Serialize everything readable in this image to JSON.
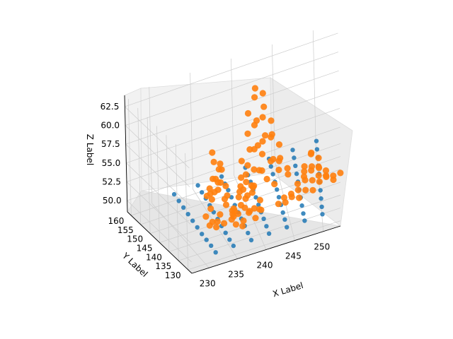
{
  "chart_data": {
    "type": "scatter",
    "projection": "3d",
    "xlabel": "X Label",
    "ylabel": "Y Label",
    "zlabel": "Z Label",
    "xlim": [
      227,
      253
    ],
    "ylim": [
      128,
      162
    ],
    "zlim": [
      48.5,
      64
    ],
    "xticks": [
      "230",
      "235",
      "240",
      "245",
      "250"
    ],
    "yticks": [
      "130",
      "135",
      "140",
      "145",
      "150",
      "155",
      "160"
    ],
    "zticks": [
      "50.0",
      "52.5",
      "55.0",
      "57.5",
      "60.0",
      "62.5"
    ],
    "grid": true,
    "colors": {
      "series_1": "#1f77b4",
      "series_2": "#ff7f0e",
      "pane": "#f2f2f2",
      "grid": "#cccccc"
    },
    "series": [
      {
        "color": "#1f77b4",
        "marker_size": 5,
        "points": [
          [
            232,
            131,
            49.3
          ],
          [
            232,
            134,
            49.4
          ],
          [
            232,
            137,
            49.4
          ],
          [
            232,
            140,
            49.4
          ],
          [
            232,
            143,
            49.5
          ],
          [
            232,
            146,
            49.6
          ],
          [
            232,
            149,
            49.7
          ],
          [
            232,
            152,
            49.8
          ],
          [
            232,
            155,
            49.9
          ],
          [
            232,
            158,
            50.0
          ],
          [
            235,
            131,
            49.4
          ],
          [
            235,
            134,
            49.4
          ],
          [
            235,
            137,
            49.5
          ],
          [
            235,
            140,
            49.6
          ],
          [
            235,
            143,
            49.7
          ],
          [
            235,
            146,
            49.8
          ],
          [
            235,
            149,
            49.9
          ],
          [
            235,
            152,
            50.0
          ],
          [
            235,
            155,
            50.0
          ],
          [
            235,
            158,
            50.1
          ],
          [
            238,
            131,
            49.4
          ],
          [
            238,
            134,
            49.5
          ],
          [
            238,
            137,
            49.6
          ],
          [
            238,
            140,
            49.7
          ],
          [
            238,
            143,
            49.7
          ],
          [
            238,
            146,
            49.8
          ],
          [
            238,
            149,
            50.0
          ],
          [
            238,
            152,
            50.1
          ],
          [
            238,
            155,
            50.1
          ],
          [
            238,
            158,
            50.2
          ],
          [
            241,
            131,
            49.5
          ],
          [
            241,
            134,
            49.6
          ],
          [
            241,
            137,
            49.7
          ],
          [
            241,
            140,
            49.7
          ],
          [
            241,
            143,
            49.8
          ],
          [
            241,
            146,
            49.9
          ],
          [
            241,
            149,
            50.0
          ],
          [
            241,
            152,
            50.2
          ],
          [
            241,
            155,
            50.2
          ],
          [
            241,
            158,
            50.3
          ],
          [
            244,
            131,
            49.6
          ],
          [
            244,
            134,
            49.7
          ],
          [
            244,
            137,
            49.7
          ],
          [
            244,
            140,
            49.8
          ],
          [
            244,
            143,
            49.9
          ],
          [
            244,
            146,
            50.0
          ],
          [
            244,
            149,
            50.1
          ],
          [
            244,
            152,
            50.2
          ],
          [
            244,
            155,
            50.3
          ],
          [
            244,
            158,
            50.4
          ],
          [
            247,
            131,
            49.7
          ],
          [
            247,
            134,
            49.7
          ],
          [
            247,
            137,
            49.8
          ],
          [
            247,
            140,
            49.9
          ],
          [
            247,
            143,
            50.0
          ],
          [
            247,
            146,
            50.1
          ],
          [
            247,
            149,
            50.2
          ],
          [
            247,
            152,
            50.3
          ],
          [
            247,
            155,
            50.4
          ],
          [
            247,
            158,
            50.5
          ],
          [
            250,
            131,
            49.8
          ],
          [
            250,
            134,
            49.8
          ],
          [
            250,
            137,
            49.9
          ],
          [
            250,
            140,
            50.0
          ],
          [
            250,
            143,
            50.1
          ],
          [
            250,
            146,
            50.2
          ],
          [
            250,
            149,
            50.3
          ],
          [
            250,
            152,
            50.4
          ],
          [
            250,
            155,
            50.5
          ],
          [
            250,
            158,
            50.6
          ]
        ]
      },
      {
        "color": "#ff7f0e",
        "marker_size": 6,
        "points": [
          [
            233,
            135,
            60.0
          ],
          [
            233,
            136,
            61.0
          ],
          [
            234,
            135,
            59.5
          ],
          [
            233,
            136,
            57.5
          ],
          [
            234,
            136,
            58.5
          ],
          [
            233,
            135,
            56.0
          ],
          [
            234,
            137,
            56.5
          ],
          [
            233,
            137,
            54.5
          ],
          [
            234,
            137,
            55.5
          ],
          [
            235,
            137,
            54.0
          ],
          [
            235,
            136,
            53.5
          ],
          [
            234,
            136,
            52.5
          ],
          [
            233,
            138,
            53.0
          ],
          [
            232,
            136,
            55.5
          ],
          [
            234,
            135,
            57.0
          ],
          [
            235,
            135,
            55.0
          ],
          [
            233,
            137,
            51.5
          ],
          [
            234,
            138,
            51.0
          ],
          [
            233,
            134,
            58.0
          ],
          [
            232,
            134,
            57.0
          ],
          [
            236,
            136,
            52.0
          ],
          [
            235,
            138,
            50.5
          ],
          [
            234,
            134,
            59.0
          ],
          [
            233,
            138,
            55.0
          ],
          [
            232,
            137,
            52.5
          ],
          [
            235,
            136,
            56.0
          ],
          [
            236,
            137,
            51.0
          ],
          [
            236,
            135,
            53.0
          ],
          [
            234,
            139,
            50.0
          ],
          [
            233,
            139,
            50.5
          ],
          [
            238,
            139,
            49.0
          ],
          [
            239,
            139,
            50.5
          ],
          [
            238,
            140,
            51.5
          ],
          [
            239,
            140,
            52.5
          ],
          [
            238,
            141,
            53.0
          ],
          [
            237,
            140,
            51.0
          ],
          [
            239,
            141,
            54.0
          ],
          [
            240,
            140,
            50.5
          ],
          [
            239,
            142,
            51.5
          ],
          [
            238,
            142,
            52.0
          ],
          [
            237,
            141,
            50.0
          ],
          [
            240,
            141,
            53.0
          ],
          [
            239,
            138,
            51.0
          ],
          [
            238,
            138,
            50.0
          ],
          [
            240,
            139,
            49.5
          ],
          [
            237,
            139,
            49.5
          ],
          [
            240,
            142,
            52.0
          ],
          [
            241,
            141,
            51.0
          ],
          [
            239,
            143,
            50.0
          ],
          [
            238,
            143,
            49.5
          ],
          [
            241,
            140,
            50.0
          ],
          [
            238,
            140,
            54.0
          ],
          [
            239,
            141,
            55.0
          ],
          [
            240,
            140,
            53.5
          ],
          [
            237,
            142,
            50.5
          ],
          [
            241,
            142,
            49.5
          ],
          [
            242,
            153,
            62.0
          ],
          [
            243,
            153,
            61.0
          ],
          [
            242,
            154,
            60.5
          ],
          [
            243,
            152,
            59.5
          ],
          [
            241,
            153,
            59.0
          ],
          [
            242,
            152,
            58.0
          ],
          [
            243,
            154,
            57.5
          ],
          [
            244,
            153,
            57.0
          ],
          [
            242,
            155,
            56.5
          ],
          [
            241,
            154,
            56.0
          ],
          [
            243,
            151,
            56.0
          ],
          [
            244,
            152,
            55.5
          ],
          [
            242,
            151,
            55.0
          ],
          [
            244,
            154,
            54.5
          ],
          [
            241,
            152,
            54.5
          ],
          [
            243,
            155,
            54.0
          ],
          [
            245,
            153,
            53.5
          ],
          [
            242,
            156,
            53.0
          ],
          [
            240,
            153,
            53.0
          ],
          [
            244,
            151,
            52.5
          ],
          [
            243,
            156,
            52.0
          ],
          [
            245,
            152,
            52.0
          ],
          [
            241,
            155,
            51.5
          ],
          [
            242,
            150,
            52.0
          ],
          [
            245,
            154,
            51.0
          ],
          [
            244,
            155,
            51.0
          ],
          [
            240,
            154,
            50.5
          ],
          [
            243,
            150,
            50.5
          ],
          [
            246,
            153,
            50.0
          ],
          [
            242,
            157,
            50.0
          ],
          [
            241,
            151,
            50.0
          ],
          [
            244,
            150,
            49.5
          ],
          [
            246,
            152,
            49.5
          ],
          [
            243,
            157,
            49.5
          ],
          [
            245,
            155,
            49.5
          ],
          [
            240,
            152,
            49.5
          ],
          [
            249,
            147,
            53.0
          ],
          [
            250,
            147,
            52.0
          ],
          [
            249,
            148,
            52.5
          ],
          [
            248,
            147,
            51.5
          ],
          [
            250,
            146,
            51.0
          ],
          [
            249,
            146,
            51.5
          ],
          [
            248,
            148,
            50.5
          ],
          [
            250,
            148,
            50.5
          ],
          [
            251,
            147,
            50.0
          ],
          [
            249,
            149,
            50.0
          ],
          [
            247,
            147,
            49.5
          ],
          [
            248,
            146,
            50.0
          ],
          [
            251,
            146,
            49.5
          ],
          [
            250,
            145,
            49.5
          ],
          [
            249,
            145,
            50.0
          ],
          [
            248,
            145,
            49.0
          ],
          [
            247,
            146,
            49.0
          ],
          [
            251,
            148,
            49.0
          ],
          [
            252,
            147,
            49.0
          ],
          [
            252,
            146,
            48.8
          ],
          [
            246,
            145,
            48.7
          ],
          [
            245,
            144,
            48.6
          ],
          [
            244,
            144,
            48.7
          ],
          [
            247,
            144,
            48.6
          ],
          [
            253,
            148,
            48.7
          ],
          [
            250,
            149,
            49.0
          ],
          [
            248,
            149,
            49.5
          ],
          [
            249,
            144,
            49.0
          ],
          [
            246,
            146,
            48.8
          ],
          [
            245,
            146,
            48.6
          ]
        ]
      }
    ]
  }
}
